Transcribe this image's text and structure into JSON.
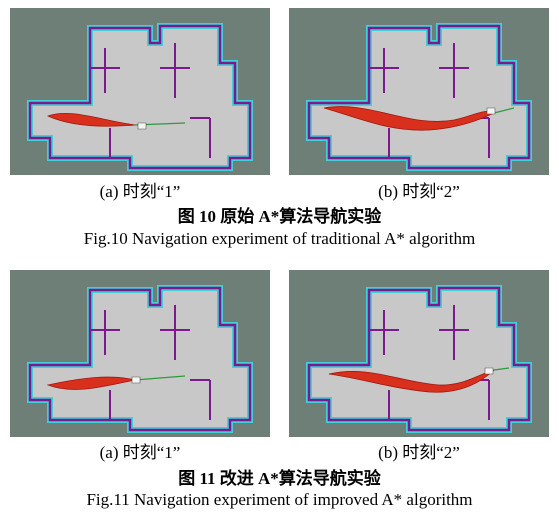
{
  "figures": [
    {
      "panels": [
        {
          "label": "(a)  时刻“1”"
        },
        {
          "label": "(b)  时刻“2”"
        }
      ],
      "caption_cn": "图 10  原始 A*算法导航实验",
      "caption_en": "Fig.10 Navigation experiment of traditional A* algorithm"
    },
    {
      "panels": [
        {
          "label": "(a)  时刻“1”"
        },
        {
          "label": "(b)  时刻“2”"
        }
      ],
      "caption_cn": "图 11  改进 A*算法导航实验",
      "caption_en": "Fig.11 Navigation experiment of improved A* algorithm"
    }
  ]
}
